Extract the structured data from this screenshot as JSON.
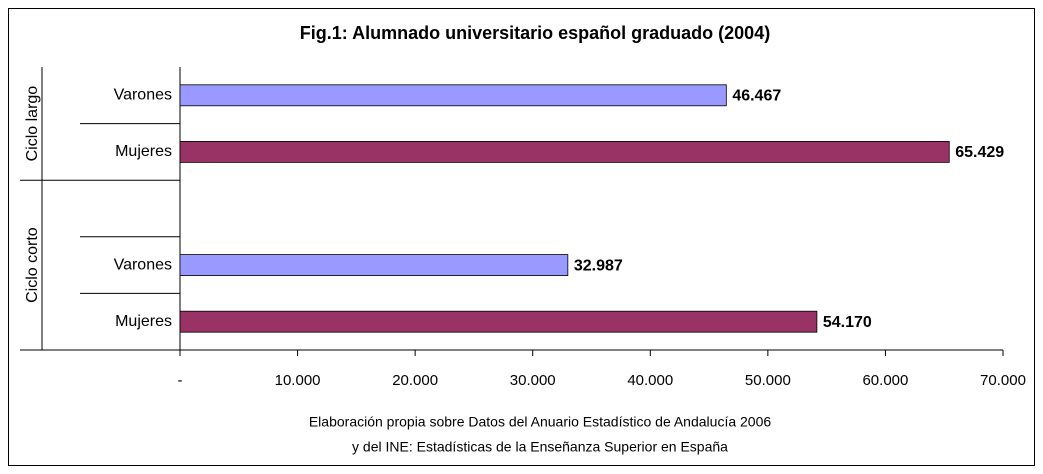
{
  "chart_data": {
    "type": "bar",
    "orientation": "horizontal",
    "title": "Fig.1: Alumnado universitario español graduado (2004)",
    "groups": [
      {
        "name": "Ciclo largo",
        "categories": [
          "Varones",
          "Mujeres"
        ],
        "values": [
          46467,
          65429
        ],
        "value_labels": [
          "46.467",
          "65.429"
        ],
        "colors": [
          "#9999ff",
          "#993366"
        ]
      },
      {
        "name": "Ciclo corto",
        "categories": [
          null,
          "Varones",
          "Mujeres"
        ],
        "values": [
          null,
          32987,
          54170
        ],
        "value_labels": [
          null,
          "32.987",
          "54.170"
        ],
        "colors": [
          null,
          "#9999ff",
          "#993366"
        ]
      }
    ],
    "xlim": [
      0,
      70000
    ],
    "xticks": [
      {
        "value": 0,
        "label": "-"
      },
      {
        "value": 10000,
        "label": "10.000"
      },
      {
        "value": 20000,
        "label": "20.000"
      },
      {
        "value": 30000,
        "label": "30.000"
      },
      {
        "value": 40000,
        "label": "40.000"
      },
      {
        "value": 50000,
        "label": "50.000"
      },
      {
        "value": 60000,
        "label": "60.000"
      },
      {
        "value": 70000,
        "label": "70.000"
      }
    ],
    "source": [
      "Elaboración propia sobre Datos del Anuario Estadístico de Andalucía 2006",
      "y del INE: Estadísticas de la Enseñanza Superior en España"
    ]
  }
}
